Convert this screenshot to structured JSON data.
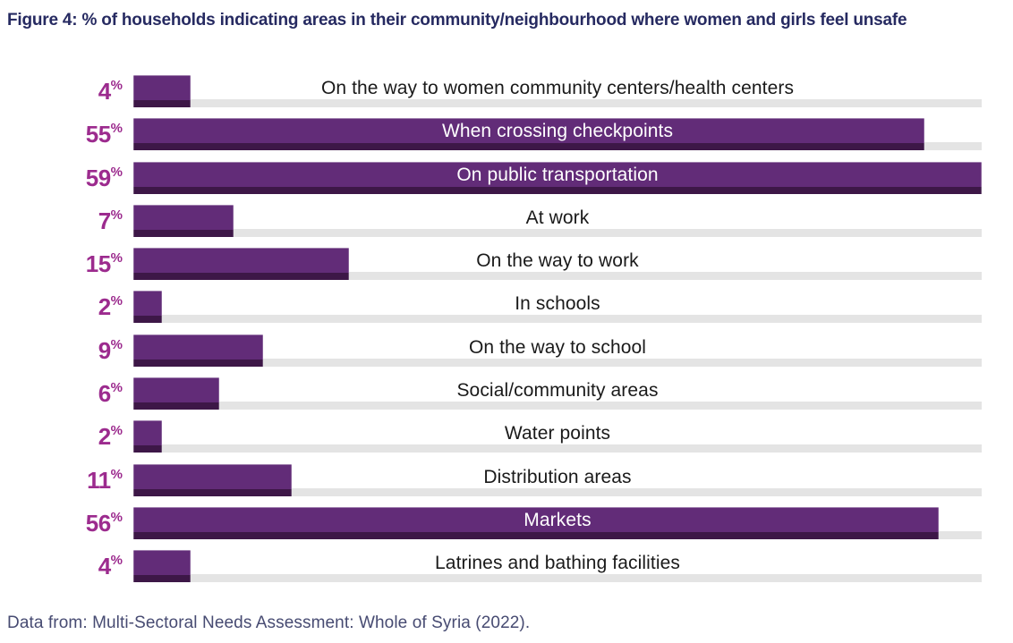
{
  "title": "Figure 4: % of households indicating areas in their community/neighbourhood where women and girls feel unsafe",
  "source_note": "Data from: Multi-Sectoral Needs Assessment: Whole of Syria (2022).",
  "value_suffix": "%",
  "colors": {
    "bar": "#622c78",
    "bar_bottom_shadow": "#3d1747",
    "track": "#e4e4e4",
    "value_label": "#9c2b8e",
    "title": "#262a61",
    "source": "#474b72",
    "category_label_dark": "#1a1a1a",
    "category_label_light": "#ffffff"
  },
  "chart_data": {
    "type": "bar",
    "orientation": "horizontal",
    "unit": "%",
    "title": "Figure 4: % of households indicating areas in their community/neighbourhood where women and girls feel unsafe",
    "xlabel": "",
    "ylabel": "",
    "xlim": [
      0,
      59
    ],
    "grid": false,
    "legend": false,
    "categories": [
      "On the way to women community centers/health centers",
      "When crossing checkpoints",
      "On public transportation",
      "At work",
      "On the way to work",
      "In schools",
      "On the way to school",
      "Social/community areas",
      "Water points",
      "Distribution areas",
      "Markets",
      "Latrines and bathing facilities"
    ],
    "values": [
      4,
      55,
      59,
      7,
      15,
      2,
      9,
      6,
      2,
      11,
      56,
      4
    ],
    "label_inside": [
      false,
      true,
      true,
      false,
      false,
      false,
      false,
      false,
      false,
      false,
      true,
      false
    ],
    "source": "Data from: Multi-Sectoral Needs Assessment: Whole of Syria (2022)."
  }
}
